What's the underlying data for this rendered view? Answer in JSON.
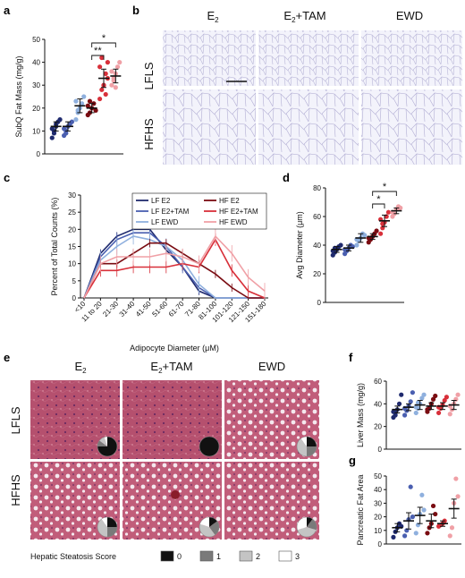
{
  "colors": {
    "lf_e2": "#1f2a6e",
    "lf_e2tam": "#4a5fb0",
    "lf_ewd": "#8fb0de",
    "hf_e2": "#7a0c12",
    "hf_e2tam": "#d8303a",
    "hf_ewd": "#f0a0a6",
    "histo_fat": "#f1f1fa",
    "histo_liver": "#b0486a"
  },
  "panel_labels": {
    "a": "a",
    "b": "b",
    "c": "c",
    "d": "d",
    "e": "e",
    "f": "f",
    "g": "g"
  },
  "group_headers": {
    "e2": "E",
    "e2_sub": "2",
    "e2tam": "E",
    "e2tam_sub": "2",
    "e2tam_suffix": "+TAM",
    "ewd": "EWD"
  },
  "row_labels": {
    "lfls": "LFLS",
    "hfhs": "HFHS"
  },
  "steatosis": {
    "title": "Hepatic Steatosis Score",
    "scores": [
      "0",
      "1",
      "2",
      "3"
    ],
    "pies": [
      {
        "cell": "lfls-e2",
        "fractions": [
          0.75,
          0.1,
          0.1,
          0.05
        ]
      },
      {
        "cell": "lfls-e2tam",
        "fractions": [
          1.0,
          0,
          0,
          0
        ]
      },
      {
        "cell": "lfls-ewd",
        "fractions": [
          0.25,
          0.25,
          0.4,
          0.1
        ]
      },
      {
        "cell": "hfhs-e2",
        "fractions": [
          0.25,
          0.25,
          0.4,
          0.1
        ]
      },
      {
        "cell": "hfhs-e2tam",
        "fractions": [
          0.15,
          0.25,
          0.4,
          0.2
        ]
      },
      {
        "cell": "hfhs-ewd",
        "fractions": [
          0.1,
          0.2,
          0.4,
          0.3
        ]
      }
    ]
  },
  "chart_data": [
    {
      "id": "a",
      "type": "bar",
      "ylabel": "SubQ Fat Mass (mg/g)",
      "categories": [
        "LF E2",
        "LF E2+TAM",
        "LF EWD",
        "HF E2",
        "HF E2+TAM",
        "HF EWD"
      ],
      "values": [
        12,
        12,
        21,
        20,
        33,
        34
      ],
      "errors": [
        2,
        2,
        3,
        2,
        4,
        3
      ],
      "yticks": [
        0,
        10,
        20,
        30,
        40,
        50
      ],
      "ylim": [
        0,
        50
      ],
      "points": [
        [
          7,
          9,
          12,
          14,
          15,
          11,
          10,
          13
        ],
        [
          8,
          10,
          12,
          13,
          14,
          11,
          9
        ],
        [
          15,
          18,
          20,
          22,
          25,
          23,
          19
        ],
        [
          17,
          18,
          20,
          22,
          19,
          21,
          23
        ],
        [
          24,
          28,
          30,
          35,
          40,
          38,
          42,
          30,
          26,
          33
        ],
        [
          30,
          32,
          35,
          38,
          40,
          36,
          33,
          29
        ]
      ],
      "significance": [
        {
          "from": 3,
          "to": 4,
          "label": "**"
        },
        {
          "from": 3,
          "to": 5,
          "label": "*"
        }
      ]
    },
    {
      "id": "c",
      "type": "line",
      "ylabel": "Percent of Total Counts (%)",
      "xlabel": "Adipocyte Diameter (μM)",
      "categories": [
        "<10",
        "11 to 20",
        "21-30",
        "31-40",
        "41-50",
        "51-60",
        "61-70",
        "71-80",
        "81-100",
        "101-120",
        "121-150",
        "151-180"
      ],
      "yticks": [
        0,
        5,
        10,
        15,
        20,
        25,
        30
      ],
      "ylim": [
        0,
        30
      ],
      "series": [
        {
          "name": "LF E2",
          "values": [
            0,
            13,
            18,
            20,
            20,
            14,
            9,
            2,
            0,
            0,
            0,
            0
          ]
        },
        {
          "name": "LF E2+TAM",
          "values": [
            0,
            12,
            17,
            19,
            19,
            15,
            9,
            3,
            0,
            0,
            0,
            0
          ]
        },
        {
          "name": "LF EWD",
          "values": [
            0,
            11,
            15,
            18,
            17,
            15,
            11,
            4,
            0,
            0,
            0,
            0
          ]
        },
        {
          "name": "HF E2",
          "values": [
            0,
            10,
            10,
            13,
            16,
            16,
            13,
            10,
            7,
            3,
            0,
            0
          ]
        },
        {
          "name": "HF E2+TAM",
          "values": [
            0,
            8,
            8,
            9,
            9,
            9,
            10,
            9,
            17,
            8,
            2,
            0
          ]
        },
        {
          "name": "HF EWD",
          "values": [
            0,
            10,
            12,
            12,
            12,
            13,
            12,
            10,
            18,
            13,
            6,
            2
          ]
        }
      ]
    },
    {
      "id": "d",
      "type": "bar",
      "ylabel": "Avg Diameter (μm)",
      "categories": [
        "LF E2",
        "LF E2+TAM",
        "LF EWD",
        "HF E2",
        "HF E2+TAM",
        "HF EWD"
      ],
      "values": [
        37,
        38,
        45,
        46,
        57,
        64
      ],
      "errors": [
        2,
        2,
        3,
        2,
        4,
        2
      ],
      "yticks": [
        0,
        20,
        40,
        60,
        80
      ],
      "ylim": [
        0,
        80
      ],
      "points": [
        [
          33,
          35,
          37,
          39,
          40,
          36,
          38
        ],
        [
          34,
          36,
          38,
          40,
          39,
          37
        ],
        [
          40,
          43,
          45,
          48,
          47,
          44
        ],
        [
          42,
          44,
          46,
          48,
          50,
          45
        ],
        [
          48,
          52,
          56,
          60,
          63,
          58,
          55
        ],
        [
          60,
          62,
          65,
          67,
          66,
          63
        ]
      ],
      "significance": [
        {
          "from": 3,
          "to": 4,
          "label": "*"
        },
        {
          "from": 3,
          "to": 5,
          "label": "*"
        }
      ]
    },
    {
      "id": "f",
      "type": "bar",
      "ylabel": "Liver Mass (mg/g)",
      "categories": [
        "LF E2",
        "LF E2+TAM",
        "LF EWD",
        "HF E2",
        "HF E2+TAM",
        "HF EWD"
      ],
      "values": [
        35,
        37,
        39,
        38,
        38,
        39
      ],
      "errors": [
        3,
        3,
        4,
        3,
        3,
        4
      ],
      "yticks": [
        0,
        20,
        40,
        60
      ],
      "ylim": [
        0,
        60
      ],
      "points": [
        [
          28,
          32,
          35,
          40,
          48,
          33,
          30
        ],
        [
          30,
          34,
          38,
          42,
          50,
          36
        ],
        [
          32,
          36,
          40,
          45,
          48,
          37,
          41
        ],
        [
          33,
          36,
          40,
          44,
          47,
          35
        ],
        [
          32,
          36,
          39,
          43,
          46,
          37
        ],
        [
          31,
          35,
          40,
          44,
          48,
          38
        ]
      ],
      "significance": []
    },
    {
      "id": "g",
      "type": "bar",
      "ylabel": "Pancreatic Fat Area",
      "categories": [
        "LF E2",
        "LF E2+TAM",
        "LF EWD",
        "HF E2",
        "HF E2+TAM",
        "HF EWD"
      ],
      "values": [
        12,
        17,
        21,
        17,
        15,
        26
      ],
      "errors": [
        3,
        6,
        6,
        5,
        2,
        7
      ],
      "yticks": [
        0,
        10,
        20,
        30,
        40,
        50
      ],
      "ylim": [
        0,
        50
      ],
      "points": [
        [
          5,
          9,
          12,
          15,
          13
        ],
        [
          6,
          10,
          18,
          42,
          20
        ],
        [
          8,
          14,
          22,
          36,
          25
        ],
        [
          8,
          12,
          15,
          28,
          22
        ],
        [
          13,
          14,
          15,
          17
        ],
        [
          6,
          12,
          30,
          48,
          35
        ]
      ],
      "significance": []
    }
  ]
}
